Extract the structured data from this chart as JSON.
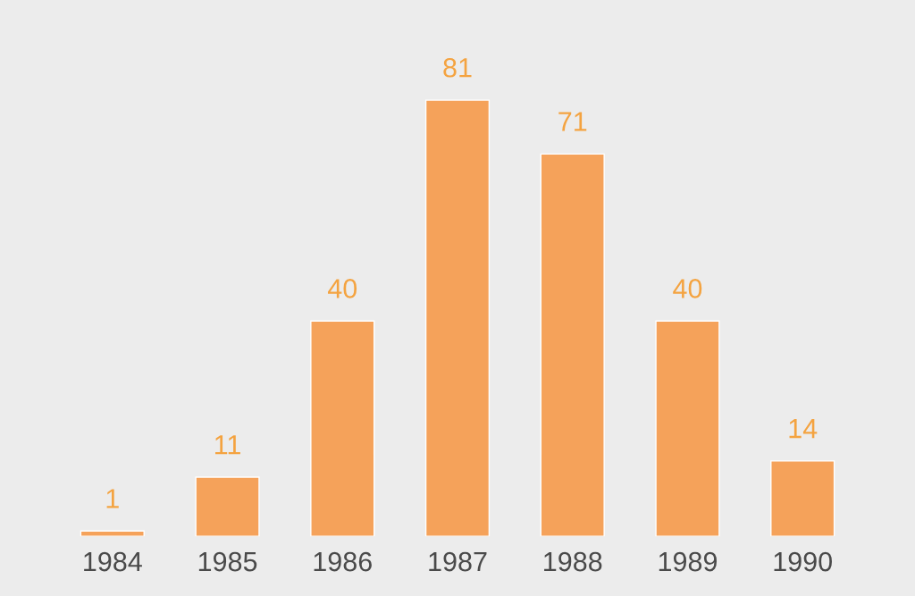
{
  "chart_data": {
    "type": "bar",
    "categories": [
      "1984",
      "1985",
      "1986",
      "1987",
      "1988",
      "1989",
      "1990"
    ],
    "values": [
      1,
      11,
      40,
      81,
      71,
      40,
      14
    ],
    "color": "#f5a25a",
    "data_labels": true,
    "grid": false,
    "tick_labels": "x"
  }
}
